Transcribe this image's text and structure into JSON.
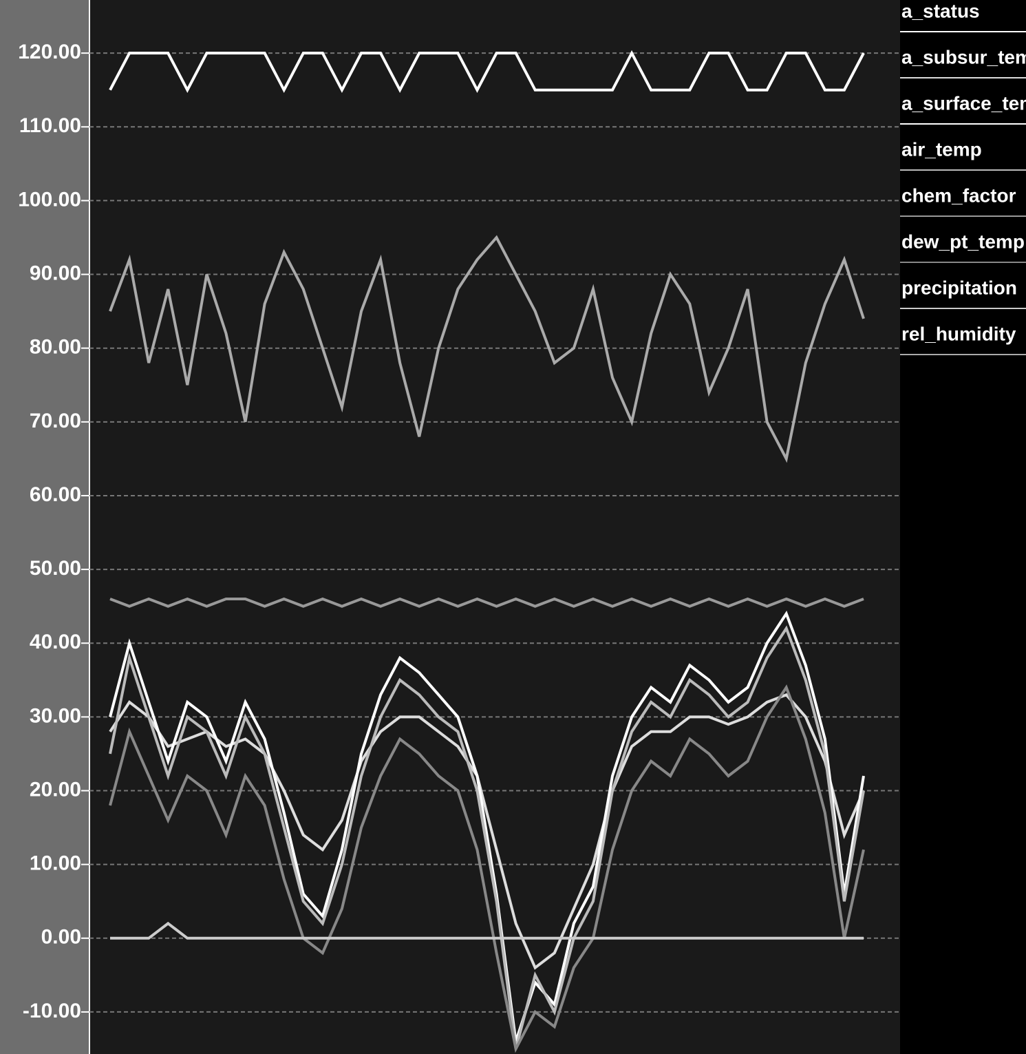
{
  "chart_data": {
    "type": "line",
    "ylim": [
      -15.7,
      127.2
    ],
    "yticks": [
      {
        "value": -10,
        "label": "-10.00"
      },
      {
        "value": 0,
        "label": "0.00"
      },
      {
        "value": 10,
        "label": "10.00"
      },
      {
        "value": 20,
        "label": "20.00"
      },
      {
        "value": 30,
        "label": "30.00"
      },
      {
        "value": 40,
        "label": "40.00"
      },
      {
        "value": 50,
        "label": "50.00"
      },
      {
        "value": 60,
        "label": "60.00"
      },
      {
        "value": 70,
        "label": "70.00"
      },
      {
        "value": 80,
        "label": "80.00"
      },
      {
        "value": 90,
        "label": "90.00"
      },
      {
        "value": 100,
        "label": "100.00"
      },
      {
        "value": 110,
        "label": "110.00"
      },
      {
        "value": 120,
        "label": "120.00"
      }
    ],
    "grid": true,
    "series": [
      {
        "name": "a_status",
        "color": "#ffffff",
        "values": [
          115,
          120,
          120,
          120,
          115,
          120,
          120,
          120,
          120,
          115,
          120,
          120,
          115,
          120,
          120,
          115,
          120,
          120,
          120,
          115,
          120,
          120,
          115,
          115,
          115,
          115,
          115,
          120,
          115,
          115,
          115,
          120,
          120,
          115,
          115,
          120,
          120,
          115,
          115,
          120
        ]
      },
      {
        "name": "a_subsur_temp",
        "color": "#dddddd",
        "values": [
          28,
          32,
          30,
          26,
          27,
          28,
          26,
          27,
          25,
          20,
          14,
          12,
          16,
          24,
          28,
          30,
          30,
          28,
          26,
          22,
          12,
          2,
          -4,
          -2,
          4,
          10,
          20,
          26,
          28,
          28,
          30,
          30,
          29,
          30,
          32,
          33,
          30,
          24,
          14,
          20
        ]
      },
      {
        "name": "a_surface_temp",
        "color": "#ffffff",
        "values": [
          30,
          40,
          32,
          24,
          32,
          30,
          24,
          32,
          27,
          17,
          6,
          3,
          12,
          25,
          33,
          38,
          36,
          33,
          30,
          22,
          6,
          -14,
          -6,
          -9,
          2,
          7,
          22,
          30,
          34,
          32,
          37,
          35,
          32,
          34,
          40,
          44,
          37,
          27,
          6,
          22
        ]
      },
      {
        "name": "air_temp",
        "color": "#bbbbbb",
        "values": [
          25,
          38,
          30,
          22,
          30,
          28,
          22,
          30,
          25,
          15,
          5,
          2,
          10,
          22,
          30,
          35,
          33,
          30,
          28,
          20,
          5,
          -15,
          -5,
          -10,
          0,
          5,
          20,
          28,
          32,
          30,
          35,
          33,
          30,
          32,
          38,
          42,
          35,
          25,
          5,
          20
        ]
      },
      {
        "name": "chem_factor",
        "color": "#999999",
        "values": [
          46,
          45,
          46,
          45,
          46,
          45,
          46,
          46,
          45,
          46,
          45,
          46,
          45,
          46,
          45,
          46,
          45,
          46,
          45,
          46,
          45,
          46,
          45,
          46,
          45,
          46,
          45,
          46,
          45,
          46,
          45,
          46,
          45,
          46,
          45,
          46,
          45,
          46,
          45,
          46
        ]
      },
      {
        "name": "dew_pt_temp",
        "color": "#888888",
        "values": [
          18,
          28,
          22,
          16,
          22,
          20,
          14,
          22,
          18,
          8,
          0,
          -2,
          4,
          15,
          22,
          27,
          25,
          22,
          20,
          12,
          -2,
          -15,
          -10,
          -12,
          -4,
          0,
          12,
          20,
          24,
          22,
          27,
          25,
          22,
          24,
          30,
          34,
          27,
          17,
          0,
          12
        ]
      },
      {
        "name": "precipitation",
        "color": "#cccccc",
        "values": [
          0,
          0,
          0,
          2,
          0,
          0,
          0,
          0,
          0,
          0,
          0,
          0,
          0,
          0,
          0,
          0,
          0,
          0,
          0,
          0,
          0,
          0,
          0,
          0,
          0,
          0,
          0,
          0,
          0,
          0,
          0,
          0,
          0,
          0,
          0,
          0,
          0,
          0,
          0,
          0
        ]
      },
      {
        "name": "rel_humidity",
        "color": "#aaaaaa",
        "values": [
          85,
          92,
          78,
          88,
          75,
          90,
          82,
          70,
          86,
          93,
          88,
          80,
          72,
          85,
          92,
          78,
          68,
          80,
          88,
          92,
          95,
          90,
          85,
          78,
          80,
          88,
          76,
          70,
          82,
          90,
          86,
          74,
          80,
          88,
          70,
          65,
          78,
          86,
          92,
          84
        ]
      }
    ]
  }
}
